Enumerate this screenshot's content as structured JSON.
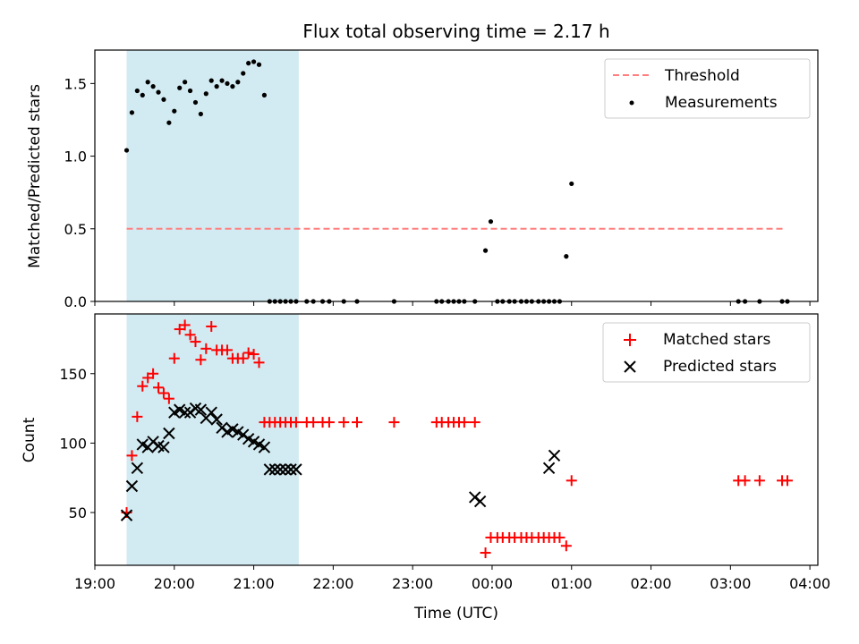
{
  "figure": {
    "title": "Flux total observing time = 2.17 h"
  },
  "chart_data": [
    {
      "type": "scatter",
      "ylabel": "Matched/Predicted stars",
      "xlabel": "",
      "xlim": [
        "19:00",
        "04:06"
      ],
      "ylim": [
        0,
        1.73
      ],
      "yticks": [
        0.0,
        0.5,
        1.0,
        1.5
      ],
      "ytick_labels": [
        "0.0",
        "0.5",
        "1.0",
        "1.5"
      ],
      "grid": false,
      "legend_position": "top-right",
      "shaded_span": {
        "start": "19:24",
        "end": "21:34",
        "color": "#add8e6"
      },
      "series": [
        {
          "name": "Threshold",
          "kind": "dashed-line",
          "color": "#ff7f7f",
          "x": [
            "19:24",
            "03:40"
          ],
          "y": [
            0.5,
            0.5
          ]
        },
        {
          "name": "Measurements",
          "kind": "dot",
          "color": "#000000",
          "x": [
            "19:24",
            "19:28",
            "19:32",
            "19:36",
            "19:40",
            "19:44",
            "19:48",
            "19:52",
            "19:56",
            "20:00",
            "20:04",
            "20:08",
            "20:12",
            "20:16",
            "20:20",
            "20:24",
            "20:28",
            "20:32",
            "20:36",
            "20:40",
            "20:44",
            "20:48",
            "20:52",
            "20:56",
            "21:00",
            "21:04",
            "21:08",
            "21:12",
            "21:16",
            "21:20",
            "21:24",
            "21:28",
            "21:32",
            "21:40",
            "21:45",
            "21:52",
            "21:57",
            "22:08",
            "22:18",
            "22:46",
            "23:18",
            "23:22",
            "23:27",
            "23:31",
            "23:35",
            "23:39",
            "23:47",
            "23:55",
            "23:59",
            "00:04",
            "00:08",
            "00:13",
            "00:17",
            "00:22",
            "00:26",
            "00:30",
            "00:35",
            "00:39",
            "00:43",
            "00:47",
            "00:51",
            "00:56",
            "01:00",
            "03:06",
            "03:11",
            "03:22",
            "03:39",
            "03:43"
          ],
          "y": [
            1.04,
            1.3,
            1.45,
            1.42,
            1.51,
            1.48,
            1.44,
            1.39,
            1.23,
            1.31,
            1.47,
            1.51,
            1.45,
            1.37,
            1.29,
            1.43,
            1.52,
            1.48,
            1.52,
            1.5,
            1.48,
            1.51,
            1.57,
            1.64,
            1.65,
            1.63,
            1.42,
            0.0,
            0.0,
            0.0,
            0.0,
            0.0,
            0.0,
            0.0,
            0.0,
            0.0,
            0.0,
            0.0,
            0.0,
            0.0,
            0.0,
            0.0,
            0.0,
            0.0,
            0.0,
            0.0,
            0.0,
            0.35,
            0.55,
            0.0,
            0.0,
            0.0,
            0.0,
            0.0,
            0.0,
            0.0,
            0.0,
            0.0,
            0.0,
            0.0,
            0.0,
            0.31,
            0.81,
            0.0,
            0.0,
            0.0,
            0.0,
            0.0
          ]
        }
      ]
    },
    {
      "type": "scatter",
      "ylabel": "Count",
      "xlabel": "Time (UTC)",
      "xlim": [
        "19:00",
        "04:06"
      ],
      "ylim": [
        12,
        193
      ],
      "yticks": [
        50,
        100,
        150
      ],
      "ytick_labels": [
        "50",
        "100",
        "150"
      ],
      "xticks": [
        "19:00",
        "20:00",
        "21:00",
        "22:00",
        "23:00",
        "00:00",
        "01:00",
        "02:00",
        "03:00",
        "04:00"
      ],
      "grid": false,
      "legend_position": "top-right",
      "shaded_span": {
        "start": "19:24",
        "end": "21:34",
        "color": "#add8e6"
      },
      "series": [
        {
          "name": "Matched stars",
          "kind": "plus",
          "color": "#ff0000",
          "x": [
            "19:24",
            "19:28",
            "19:32",
            "19:36",
            "19:40",
            "19:44",
            "19:48",
            "19:52",
            "19:56",
            "20:00",
            "20:04",
            "20:08",
            "20:12",
            "20:16",
            "20:20",
            "20:24",
            "20:28",
            "20:32",
            "20:36",
            "20:40",
            "20:44",
            "20:48",
            "20:52",
            "20:56",
            "21:00",
            "21:04",
            "21:08",
            "21:12",
            "21:16",
            "21:20",
            "21:24",
            "21:28",
            "21:32",
            "21:40",
            "21:45",
            "21:52",
            "21:57",
            "22:08",
            "22:18",
            "22:46",
            "23:18",
            "23:22",
            "23:27",
            "23:31",
            "23:35",
            "23:39",
            "23:47",
            "23:55",
            "23:59",
            "00:04",
            "00:08",
            "00:13",
            "00:17",
            "00:22",
            "00:26",
            "00:30",
            "00:35",
            "00:39",
            "00:43",
            "00:47",
            "00:51",
            "00:56",
            "01:00",
            "03:06",
            "03:11",
            "03:22",
            "03:39",
            "03:43"
          ],
          "y": [
            50,
            91,
            119,
            141,
            147,
            150,
            140,
            136,
            132,
            161,
            182,
            185,
            178,
            173,
            160,
            168,
            184,
            167,
            167,
            167,
            161,
            161,
            161,
            165,
            164,
            158,
            115,
            115,
            115,
            115,
            115,
            115,
            115,
            115,
            115,
            115,
            115,
            115,
            115,
            115,
            115,
            115,
            115,
            115,
            115,
            115,
            115,
            21,
            32,
            32,
            32,
            32,
            32,
            32,
            32,
            32,
            32,
            32,
            32,
            32,
            32,
            26,
            73,
            73,
            73,
            73,
            73,
            73
          ]
        },
        {
          "name": "Predicted stars",
          "kind": "x",
          "color": "#000000",
          "x": [
            "19:24",
            "19:28",
            "19:32",
            "19:36",
            "19:40",
            "19:44",
            "19:48",
            "19:52",
            "19:56",
            "20:00",
            "20:04",
            "20:08",
            "20:12",
            "20:16",
            "20:20",
            "20:24",
            "20:28",
            "20:32",
            "20:36",
            "20:40",
            "20:44",
            "20:48",
            "20:52",
            "20:56",
            "21:00",
            "21:04",
            "21:08",
            "21:12",
            "21:16",
            "21:20",
            "21:24",
            "21:28",
            "21:32",
            "23:47",
            "23:51",
            "00:43",
            "00:47"
          ],
          "y": [
            48,
            69,
            82,
            99,
            97,
            101,
            98,
            97,
            107,
            122,
            124,
            122,
            122,
            125,
            124,
            118,
            122,
            117,
            111,
            108,
            110,
            108,
            106,
            103,
            101,
            99,
            97,
            81,
            81,
            81,
            81,
            81,
            81,
            61,
            58,
            82,
            91
          ]
        }
      ]
    }
  ]
}
